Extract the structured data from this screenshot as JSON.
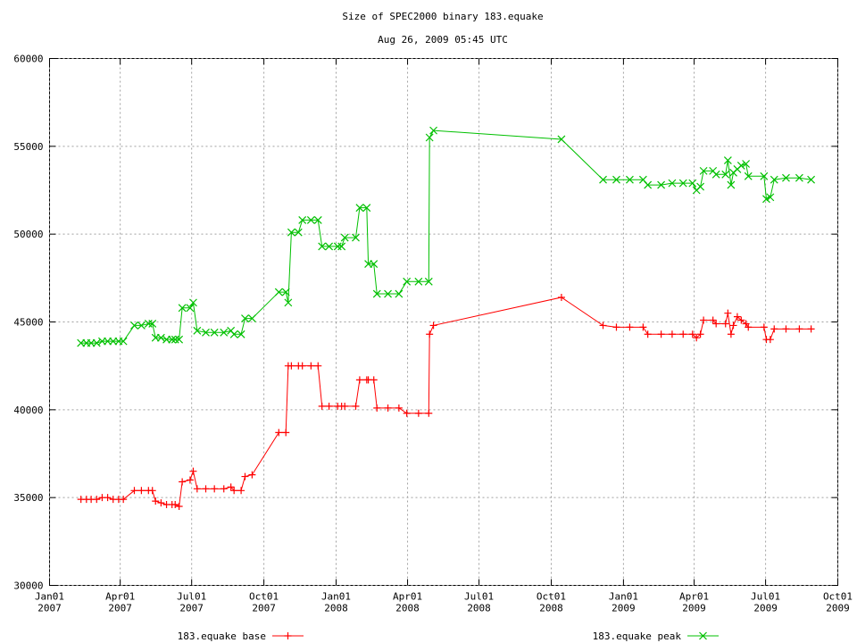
{
  "chart_data": {
    "type": "line",
    "title": "Size of SPEC2000 binary 183.equake",
    "subtitle": "Aug 26, 2009 05:45 UTC",
    "grid": true,
    "legend": "bottom",
    "xlim": [
      "2007-01-01",
      "2009-10-01"
    ],
    "xticks": [
      {
        "value": "2007-01-01",
        "label": "Jan01\n2007"
      },
      {
        "value": "2007-04-01",
        "label": "Apr01\n2007"
      },
      {
        "value": "2007-07-01",
        "label": "Jul01\n2007"
      },
      {
        "value": "2007-10-01",
        "label": "Oct01\n2007"
      },
      {
        "value": "2008-01-01",
        "label": "Jan01\n2008"
      },
      {
        "value": "2008-04-01",
        "label": "Apr01\n2008"
      },
      {
        "value": "2008-07-01",
        "label": "Jul01\n2008"
      },
      {
        "value": "2008-10-01",
        "label": "Oct01\n2008"
      },
      {
        "value": "2009-01-01",
        "label": "Jan01\n2009"
      },
      {
        "value": "2009-04-01",
        "label": "Apr01\n2009"
      },
      {
        "value": "2009-07-01",
        "label": "Jul01\n2009"
      },
      {
        "value": "2009-10-01",
        "label": "Oct01\n2009"
      }
    ],
    "ylim": [
      30000,
      60000
    ],
    "yticks": [
      30000,
      35000,
      40000,
      45000,
      50000,
      55000,
      60000
    ],
    "x": [
      "2007-02-10",
      "2007-02-17",
      "2007-02-23",
      "2007-03-02",
      "2007-03-09",
      "2007-03-16",
      "2007-03-23",
      "2007-03-30",
      "2007-04-05",
      "2007-04-19",
      "2007-04-28",
      "2007-05-07",
      "2007-05-12",
      "2007-05-16",
      "2007-05-23",
      "2007-05-30",
      "2007-06-06",
      "2007-06-10",
      "2007-06-15",
      "2007-06-19",
      "2007-06-29",
      "2007-07-03",
      "2007-07-08",
      "2007-07-19",
      "2007-07-30",
      "2007-08-11",
      "2007-08-20",
      "2007-08-24",
      "2007-09-02",
      "2007-09-07",
      "2007-09-16",
      "2007-10-20",
      "2007-10-29",
      "2007-11-01",
      "2007-11-05",
      "2007-11-14",
      "2007-11-19",
      "2007-11-30",
      "2007-12-09",
      "2007-12-14",
      "2007-12-23",
      "2008-01-03",
      "2008-01-08",
      "2008-01-12",
      "2008-01-26",
      "2008-01-31",
      "2008-02-09",
      "2008-02-11",
      "2008-02-18",
      "2008-02-22",
      "2008-03-07",
      "2008-03-21",
      "2008-03-31",
      "2008-04-15",
      "2008-04-28",
      "2008-04-29",
      "2008-05-04",
      "2008-10-14",
      "2008-12-06",
      "2008-12-23",
      "2009-01-09",
      "2009-01-26",
      "2009-02-01",
      "2009-02-18",
      "2009-03-04",
      "2009-03-18",
      "2009-03-30",
      "2009-04-04",
      "2009-04-09",
      "2009-04-13",
      "2009-04-25",
      "2009-04-29",
      "2009-05-11",
      "2009-05-14",
      "2009-05-18",
      "2009-05-21",
      "2009-05-26",
      "2009-05-31",
      "2009-06-06",
      "2009-06-09",
      "2009-06-29",
      "2009-07-02",
      "2009-07-07",
      "2009-07-12",
      "2009-07-27",
      "2009-08-13",
      "2009-08-28"
    ],
    "series": [
      {
        "name": "183.equake base",
        "color": "#ff0000",
        "marker": "plus",
        "values": [
          34900,
          34900,
          34900,
          34900,
          35000,
          35000,
          34900,
          34900,
          34900,
          35400,
          35400,
          35400,
          35400,
          34800,
          34700,
          34600,
          34600,
          34600,
          34500,
          35900,
          36000,
          36500,
          35500,
          35500,
          35500,
          35500,
          35600,
          35400,
          35400,
          36200,
          36300,
          38700,
          38700,
          42500,
          42500,
          42500,
          42500,
          42500,
          42500,
          40200,
          40200,
          40200,
          40200,
          40200,
          40200,
          41700,
          41700,
          41700,
          41700,
          40100,
          40100,
          40100,
          39800,
          39800,
          39800,
          44300,
          44800,
          46400,
          44800,
          44700,
          44700,
          44700,
          44300,
          44300,
          44300,
          44300,
          44300,
          44100,
          44300,
          45100,
          45100,
          44900,
          44900,
          45500,
          44300,
          44800,
          45300,
          45100,
          44900,
          44700,
          44700,
          44000,
          44000,
          44600,
          44600,
          44600,
          44600
        ]
      },
      {
        "name": "183.equake peak",
        "color": "#00c000",
        "marker": "cross",
        "values": [
          43800,
          43800,
          43800,
          43800,
          43900,
          43900,
          43900,
          43900,
          43900,
          44800,
          44800,
          44900,
          44900,
          44100,
          44100,
          44000,
          44000,
          44000,
          44000,
          45800,
          45800,
          46100,
          44500,
          44400,
          44400,
          44400,
          44500,
          44300,
          44300,
          45200,
          45200,
          46700,
          46700,
          46100,
          50100,
          50100,
          50800,
          50800,
          50800,
          49300,
          49300,
          49300,
          49300,
          49800,
          49800,
          51500,
          51500,
          48300,
          48300,
          46600,
          46600,
          46600,
          47300,
          47300,
          47300,
          55500,
          55900,
          55400,
          53100,
          53100,
          53100,
          53100,
          52800,
          52800,
          52900,
          52900,
          52900,
          52500,
          52700,
          53600,
          53600,
          53400,
          53400,
          54200,
          52800,
          53500,
          53700,
          53900,
          54000,
          53300,
          53300,
          52000,
          52100,
          53100,
          53200,
          53200,
          53100
        ]
      }
    ]
  }
}
